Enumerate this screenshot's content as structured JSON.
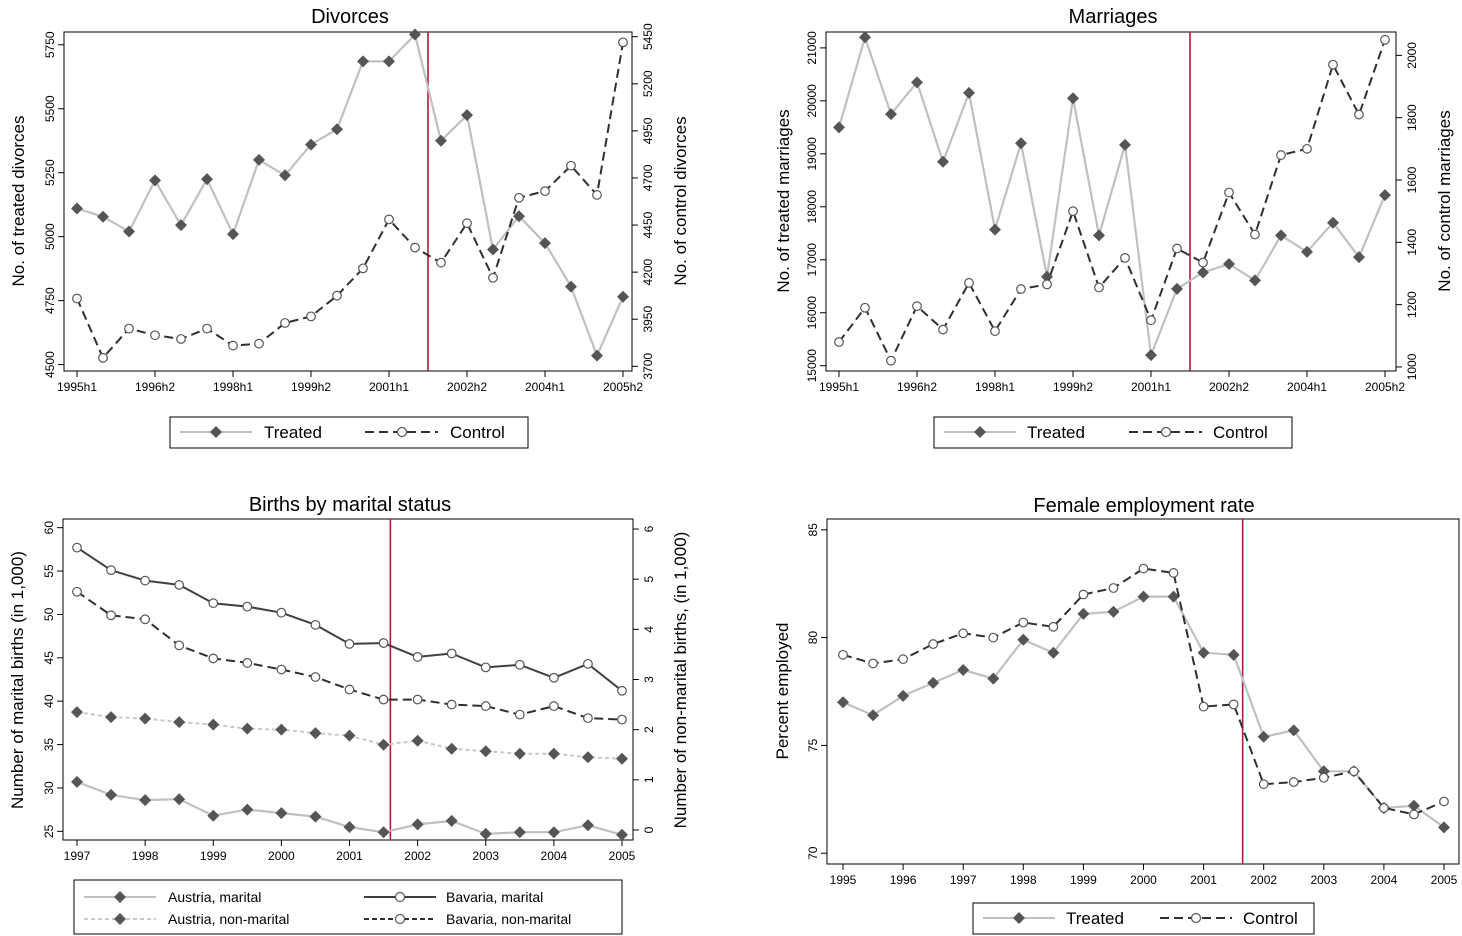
{
  "colors": {
    "treated": "#c0c0c0",
    "control": "#303030",
    "marker": "#555555",
    "vline": "#b01a3e",
    "austria_nonmarital": "#c8c8c8",
    "bavaria_marital": "#404040"
  },
  "chart_data": [
    {
      "type": "line",
      "title": "Divorces",
      "ylabel": "No. of treated divorces",
      "y2label": "No. of control divorces",
      "x_ticks": [
        "1995h1",
        "1996h2",
        "1998h1",
        "1999h2",
        "2001h1",
        "2002h2",
        "2004h1",
        "2005h2"
      ],
      "y_ticks": [
        "4500",
        "4750",
        "5000",
        "5250",
        "5500",
        "5750"
      ],
      "y2_ticks": [
        "3700",
        "3950",
        "4200",
        "4450",
        "4700",
        "4950",
        "5200",
        "5450"
      ],
      "ylim": [
        4475,
        5800
      ],
      "y2lim": [
        3675,
        5475
      ],
      "vline_index": 13.5,
      "series": [
        {
          "name": "Treated",
          "axis": "left",
          "style": "treated",
          "values": [
            5110,
            5078,
            5020,
            5220,
            5045,
            5225,
            5010,
            5300,
            5240,
            5360,
            5420,
            5685,
            5685,
            5790,
            5375,
            5475,
            4950,
            5080,
            4975,
            4805,
            4535,
            4765
          ]
        },
        {
          "name": "Control",
          "axis": "right",
          "style": "control",
          "values": [
            4060,
            3745,
            3900,
            3865,
            3845,
            3900,
            3810,
            3820,
            3930,
            3965,
            4075,
            4220,
            4480,
            4330,
            4250,
            4460,
            4170,
            4595,
            4630,
            4765,
            4610,
            5420
          ]
        }
      ],
      "legend": [
        "Treated",
        "Control"
      ]
    },
    {
      "type": "line",
      "title": "Marriages",
      "ylabel": "No. of treated marriages",
      "y2label": "No. of control marriages",
      "x_ticks": [
        "1995h1",
        "1996h2",
        "1998h1",
        "1999h2",
        "2001h1",
        "2002h2",
        "2004h1",
        "2005h2"
      ],
      "y_ticks": [
        "15000",
        "16000",
        "17000",
        "18000",
        "19000",
        "20000",
        "21000"
      ],
      "y2_ticks": [
        "1000",
        "1200",
        "1400",
        "1600",
        "1800",
        "2000"
      ],
      "ylim": [
        14900,
        21300
      ],
      "y2lim": [
        987,
        2075
      ],
      "vline_index": 13.5,
      "series": [
        {
          "name": "Treated",
          "axis": "left",
          "style": "treated",
          "values": [
            19500,
            21200,
            19750,
            20350,
            18850,
            20150,
            17570,
            19200,
            16680,
            20050,
            17460,
            19170,
            15200,
            16450,
            16760,
            16920,
            16610,
            17460,
            17150,
            17700,
            17050,
            18220
          ]
        },
        {
          "name": "Control",
          "axis": "right",
          "style": "control",
          "values": [
            1080,
            1190,
            1020,
            1195,
            1120,
            1270,
            1115,
            1250,
            1265,
            1500,
            1255,
            1350,
            1150,
            1380,
            1335,
            1560,
            1425,
            1680,
            1700,
            1970,
            1810,
            2050
          ]
        }
      ],
      "legend": [
        "Treated",
        "Control"
      ]
    },
    {
      "type": "line",
      "title": "Births by marital status",
      "ylabel": "Number of marital births (in 1,000)",
      "y2label": "Number of non-marital births,  (in 1,000)",
      "x_ticks": [
        "1997",
        "1998",
        "1999",
        "2000",
        "2001",
        "2002",
        "2003",
        "2004",
        "2005"
      ],
      "y_ticks": [
        "25",
        "30",
        "35",
        "40",
        "45",
        "50",
        "55",
        "60"
      ],
      "y2_ticks": [
        "0",
        "1",
        "2",
        "3",
        "4",
        "5",
        "6"
      ],
      "ylim": [
        24,
        61
      ],
      "y2lim": [
        -0.2,
        6.2
      ],
      "vline_index": 9.2,
      "series": [
        {
          "name": "Austria, marital",
          "axis": "left",
          "style": "treated",
          "values": [
            30.7,
            29.2,
            28.6,
            28.7,
            26.8,
            27.5,
            27.1,
            26.7,
            25.5,
            24.9,
            25.8,
            26.2,
            24.7,
            24.9,
            24.9,
            25.7,
            24.6
          ]
        },
        {
          "name": "Austria, non-marital",
          "axis": "right",
          "style": "austria_nonmarital",
          "values": [
            2.35,
            2.25,
            2.22,
            2.15,
            2.1,
            2.02,
            2.0,
            1.93,
            1.88,
            1.7,
            1.78,
            1.62,
            1.57,
            1.52,
            1.52,
            1.45,
            1.42
          ]
        },
        {
          "name": "Bavaria, marital",
          "axis": "left",
          "style": "bavaria_marital",
          "values": [
            57.7,
            55.1,
            53.9,
            53.4,
            51.3,
            50.9,
            50.2,
            48.8,
            46.6,
            46.7,
            45.1,
            45.5,
            43.9,
            44.2,
            42.7,
            44.3,
            41.2
          ]
        },
        {
          "name": "Bavaria, non-marital",
          "axis": "right",
          "style": "control",
          "values": [
            4.75,
            4.28,
            4.2,
            3.68,
            3.42,
            3.33,
            3.2,
            3.05,
            2.8,
            2.6,
            2.6,
            2.5,
            2.47,
            2.3,
            2.47,
            2.23,
            2.2
          ]
        }
      ],
      "legend": [
        "Austria, marital",
        "Bavaria, marital",
        "Austria, non-marital",
        "Bavaria, non-marital"
      ]
    },
    {
      "type": "line",
      "title": "Female employment rate",
      "ylabel": "Percent employed",
      "x_ticks": [
        "1995",
        "1996",
        "1997",
        "1998",
        "1999",
        "2000",
        "2001",
        "2002",
        "2003",
        "2004",
        "2005"
      ],
      "y_ticks": [
        "70",
        "75",
        "80",
        "85"
      ],
      "ylim": [
        69.5,
        85.5
      ],
      "vline_index": 13.3,
      "series": [
        {
          "name": "Treated",
          "axis": "left",
          "style": "treated",
          "values": [
            77.0,
            76.4,
            77.3,
            77.9,
            78.5,
            78.1,
            79.9,
            79.3,
            81.1,
            81.2,
            81.9,
            81.9,
            79.3,
            79.2,
            75.4,
            75.7,
            73.8,
            73.8,
            72.1,
            72.2,
            71.2
          ]
        },
        {
          "name": "Control",
          "axis": "left",
          "style": "control",
          "values": [
            79.2,
            78.8,
            79.0,
            79.7,
            80.2,
            80.0,
            80.7,
            80.5,
            82.0,
            82.3,
            83.2,
            83.0,
            76.8,
            76.9,
            73.2,
            73.3,
            73.5,
            73.8,
            72.1,
            71.8,
            72.4
          ]
        }
      ],
      "legend": [
        "Treated",
        "Control"
      ]
    }
  ]
}
